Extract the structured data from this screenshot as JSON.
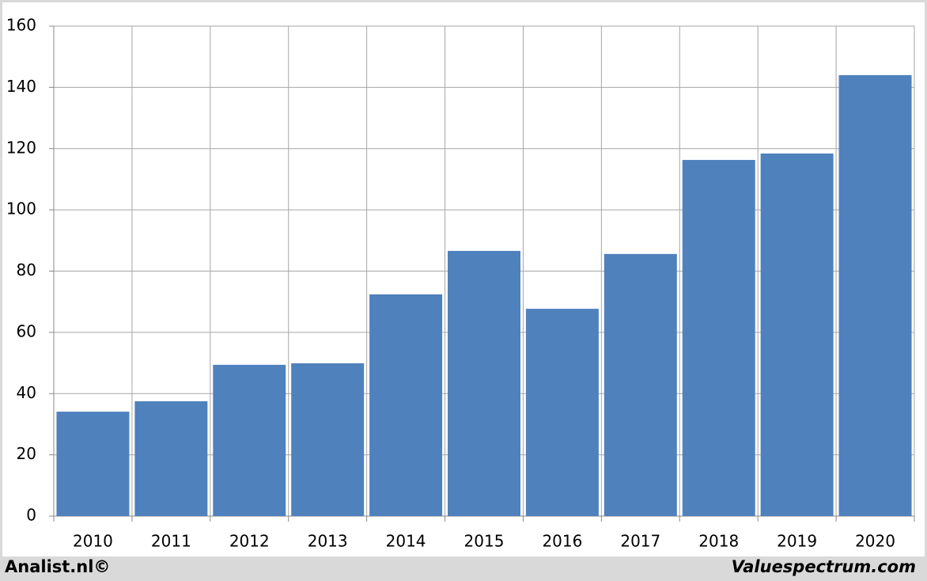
{
  "chart_data": {
    "type": "bar",
    "categories": [
      "2010",
      "2011",
      "2012",
      "2013",
      "2014",
      "2015",
      "2016",
      "2017",
      "2018",
      "2019",
      "2020"
    ],
    "values": [
      34.1,
      37.5,
      49.4,
      49.9,
      72.4,
      86.6,
      67.7,
      85.6,
      116.3,
      118.4,
      144.0
    ],
    "color": "#4f81bd",
    "ylim": [
      0,
      160
    ],
    "yticks": [
      0,
      20,
      40,
      60,
      80,
      100,
      120,
      140,
      160
    ],
    "grid": true,
    "footer_left": "Analist.nl©",
    "footer_right": "Valuespectrum.com"
  }
}
